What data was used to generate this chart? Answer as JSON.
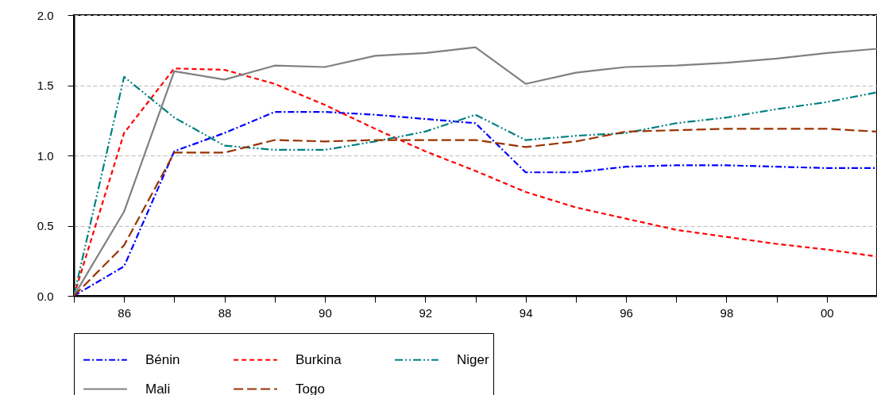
{
  "chart_data": {
    "type": "line",
    "x": [
      1985,
      1986,
      1987,
      1988,
      1989,
      1990,
      1991,
      1992,
      1993,
      1994,
      1995,
      1996,
      1997,
      1998,
      1999,
      2000,
      2001
    ],
    "series": [
      {
        "name": "Bénin",
        "color": "#0000ff",
        "line_style": "dashdot",
        "values": [
          0,
          0.21,
          1.03,
          1.16,
          1.31,
          1.31,
          1.29,
          1.26,
          1.23,
          0.88,
          0.88,
          0.92,
          0.93,
          0.93,
          0.92,
          0.91,
          0.91
        ]
      },
      {
        "name": "Burkina",
        "color": "#ff0000",
        "line_style": "dashed",
        "values": [
          0,
          1.16,
          1.62,
          1.61,
          1.51,
          1.36,
          1.19,
          1.03,
          0.89,
          0.74,
          0.63,
          0.55,
          0.47,
          0.42,
          0.37,
          0.33,
          0.28
        ]
      },
      {
        "name": "Niger",
        "color": "#008080",
        "line_style": "dashdotdot",
        "values": [
          0,
          1.56,
          1.27,
          1.07,
          1.04,
          1.04,
          1.1,
          1.17,
          1.29,
          1.11,
          1.14,
          1.16,
          1.23,
          1.27,
          1.33,
          1.38,
          1.45
        ]
      },
      {
        "name": "Mali",
        "color": "#808080",
        "line_style": "solid",
        "values": [
          0,
          0.6,
          1.6,
          1.54,
          1.64,
          1.63,
          1.71,
          1.73,
          1.77,
          1.51,
          1.59,
          1.63,
          1.64,
          1.66,
          1.69,
          1.73,
          1.76
        ]
      },
      {
        "name": "Togo",
        "color": "#993300",
        "line_style": "longdashed",
        "values": [
          0,
          0.36,
          1.02,
          1.02,
          1.11,
          1.1,
          1.11,
          1.11,
          1.11,
          1.06,
          1.1,
          1.17,
          1.18,
          1.19,
          1.19,
          1.19,
          1.17
        ]
      }
    ],
    "xlim": [
      1985,
      2001
    ],
    "xticks": [
      {
        "value": 1985,
        "label": null
      },
      {
        "value": 1986,
        "label": "86"
      },
      {
        "value": 1987,
        "label": null
      },
      {
        "value": 1988,
        "label": "88"
      },
      {
        "value": 1989,
        "label": null
      },
      {
        "value": 1990,
        "label": "90"
      },
      {
        "value": 1991,
        "label": null
      },
      {
        "value": 1992,
        "label": "92"
      },
      {
        "value": 1993,
        "label": null
      },
      {
        "value": 1994,
        "label": "94"
      },
      {
        "value": 1995,
        "label": null
      },
      {
        "value": 1996,
        "label": "96"
      },
      {
        "value": 1997,
        "label": null
      },
      {
        "value": 1998,
        "label": "98"
      },
      {
        "value": 1999,
        "label": null
      },
      {
        "value": 2000,
        "label": "00"
      },
      {
        "value": 2001,
        "label": null
      }
    ],
    "ylim": [
      0,
      2
    ],
    "yticks": [
      {
        "value": 0,
        "label": "0.0"
      },
      {
        "value": 0.5,
        "label": "0.5"
      },
      {
        "value": 1,
        "label": "1.0"
      },
      {
        "value": 1.5,
        "label": "1.5"
      },
      {
        "value": 2,
        "label": "2.0"
      }
    ],
    "grid": "y",
    "legend": "bottom"
  }
}
